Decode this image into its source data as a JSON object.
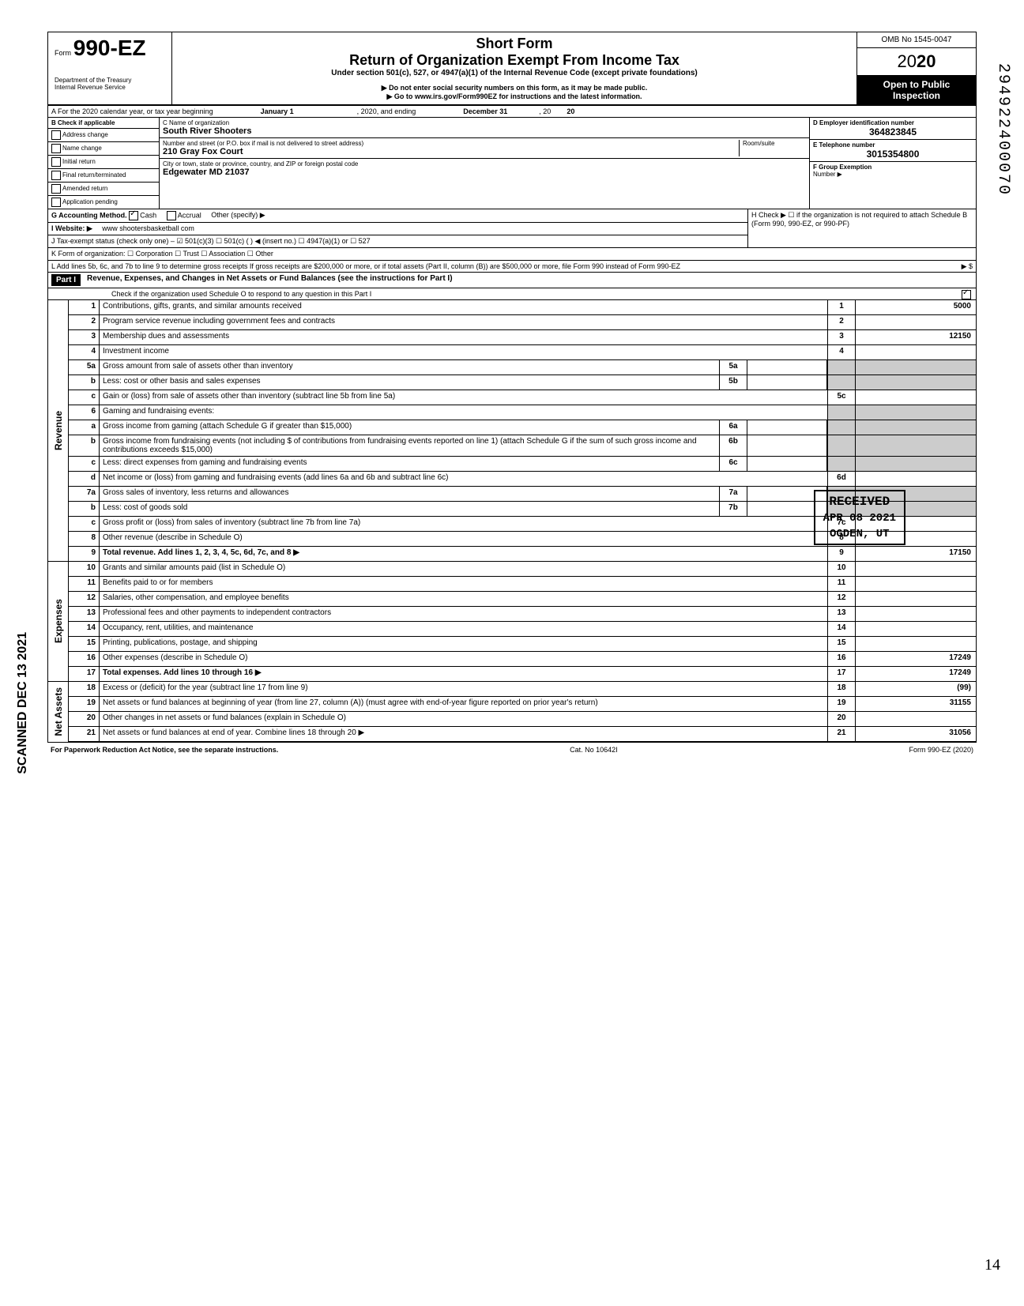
{
  "header": {
    "form_prefix": "Form",
    "form_number": "990-EZ",
    "short_form": "Short Form",
    "main_title": "Return of Organization Exempt From Income Tax",
    "subtitle": "Under section 501(c), 527, or 4947(a)(1) of the Internal Revenue Code (except private foundations)",
    "warning": "▶ Do not enter social security numbers on this form, as it may be made public.",
    "goto": "▶ Go to www.irs.gov/Form990EZ for instructions and the latest information.",
    "dept": "Department of the Treasury",
    "irs": "Internal Revenue Service",
    "omb": "OMB No 1545-0047",
    "year_prefix": "20",
    "year_bold": "20",
    "open_public": "Open to Public",
    "inspection": "Inspection"
  },
  "row_a": {
    "text_start": "A For the 2020 calendar year, or tax year beginning",
    "start_date": "January 1",
    "mid": ", 2020, and ending",
    "end_date": "December 31",
    "end": ", 20",
    "end_year": "20"
  },
  "col_b": {
    "header": "B Check if applicable",
    "items": [
      "Address change",
      "Name change",
      "Initial return",
      "Final return/terminated",
      "Amended return",
      "Application pending"
    ]
  },
  "col_c": {
    "name_label": "C Name of organization",
    "name_value": "South River Shooters",
    "addr_label": "Number and street (or P.O. box if mail is not delivered to street address)",
    "room_label": "Room/suite",
    "addr_value": "210 Gray Fox Court",
    "city_label": "City or town, state or province, country, and ZIP or foreign postal code",
    "city_value": "Edgewater MD 21037"
  },
  "col_de": {
    "d_label": "D Employer identification number",
    "d_value": "364823845",
    "e_label": "E Telephone number",
    "e_value": "3015354800",
    "f_label": "F Group Exemption",
    "f_number": "Number ▶"
  },
  "row_g": {
    "label": "G Accounting Method.",
    "cash": "Cash",
    "accrual": "Accrual",
    "other": "Other (specify) ▶"
  },
  "row_h": {
    "text": "H Check ▶ ☐ if the organization is not required to attach Schedule B",
    "forms": "(Form 990, 990-EZ, or 990-PF)"
  },
  "row_i": {
    "label": "I Website: ▶",
    "value": "www shootersbasketball com"
  },
  "row_j": {
    "text": "J Tax-exempt status (check only one) – ☑ 501(c)(3)   ☐ 501(c) (       ) ◀ (insert no.) ☐ 4947(a)(1) or ☐ 527"
  },
  "row_k": {
    "text": "K Form of organization: ☐ Corporation   ☐ Trust   ☐ Association   ☐ Other"
  },
  "row_l": {
    "text": "L Add lines 5b, 6c, and 7b to line 9 to determine gross receipts  If gross receipts are $200,000 or more, or if total assets (Part II, column (B)) are $500,000 or more, file Form 990 instead of Form 990-EZ",
    "arrow": "▶ $"
  },
  "part1": {
    "label": "Part I",
    "title": "Revenue, Expenses, and Changes in Net Assets or Fund Balances (see the instructions for Part I)",
    "check": "Check if the organization used Schedule O to respond to any question in this Part I"
  },
  "sections": {
    "revenue": "Revenue",
    "expenses": "Expenses",
    "netassets": "Net Assets"
  },
  "lines": [
    {
      "num": "1",
      "desc": "Contributions, gifts, grants, and similar amounts received",
      "box": "1",
      "val": "5000"
    },
    {
      "num": "2",
      "desc": "Program service revenue including government fees and contracts",
      "box": "2",
      "val": ""
    },
    {
      "num": "3",
      "desc": "Membership dues and assessments",
      "box": "3",
      "val": "12150"
    },
    {
      "num": "4",
      "desc": "Investment income",
      "box": "4",
      "val": ""
    },
    {
      "num": "5a",
      "desc": "Gross amount from sale of assets other than inventory",
      "sub": "5a"
    },
    {
      "num": "b",
      "desc": "Less: cost or other basis and sales expenses",
      "sub": "5b"
    },
    {
      "num": "c",
      "desc": "Gain or (loss) from sale of assets other than inventory (subtract line 5b from line 5a)",
      "box": "5c",
      "val": ""
    },
    {
      "num": "6",
      "desc": "Gaming and fundraising events:"
    },
    {
      "num": "a",
      "desc": "Gross income from gaming (attach Schedule G if greater than $15,000)",
      "sub": "6a"
    },
    {
      "num": "b",
      "desc": "Gross income from fundraising events (not including $             of contributions from fundraising events reported on line 1) (attach Schedule G if the sum of such gross income and contributions exceeds $15,000)",
      "sub": "6b"
    },
    {
      "num": "c",
      "desc": "Less: direct expenses from gaming and fundraising events",
      "sub": "6c"
    },
    {
      "num": "d",
      "desc": "Net income or (loss) from gaming and fundraising events (add lines 6a and 6b and subtract line 6c)",
      "box": "6d",
      "val": ""
    },
    {
      "num": "7a",
      "desc": "Gross sales of inventory, less returns and allowances",
      "sub": "7a"
    },
    {
      "num": "b",
      "desc": "Less: cost of goods sold",
      "sub": "7b"
    },
    {
      "num": "c",
      "desc": "Gross profit or (loss) from sales of inventory (subtract line 7b from line 7a)",
      "box": "7c",
      "val": ""
    },
    {
      "num": "8",
      "desc": "Other revenue (describe in Schedule O)",
      "box": "8",
      "val": ""
    },
    {
      "num": "9",
      "desc": "Total revenue. Add lines 1, 2, 3, 4, 5c, 6d, 7c, and 8  ▶",
      "box": "9",
      "val": "17150",
      "bold": true
    }
  ],
  "expense_lines": [
    {
      "num": "10",
      "desc": "Grants and similar amounts paid (list in Schedule O)",
      "box": "10",
      "val": ""
    },
    {
      "num": "11",
      "desc": "Benefits paid to or for members",
      "box": "11",
      "val": ""
    },
    {
      "num": "12",
      "desc": "Salaries, other compensation, and employee benefits",
      "box": "12",
      "val": ""
    },
    {
      "num": "13",
      "desc": "Professional fees and other payments to independent contractors",
      "box": "13",
      "val": ""
    },
    {
      "num": "14",
      "desc": "Occupancy, rent, utilities, and maintenance",
      "box": "14",
      "val": ""
    },
    {
      "num": "15",
      "desc": "Printing, publications, postage, and shipping",
      "box": "15",
      "val": ""
    },
    {
      "num": "16",
      "desc": "Other expenses (describe in Schedule O)",
      "box": "16",
      "val": "17249"
    },
    {
      "num": "17",
      "desc": "Total expenses. Add lines 10 through 16  ▶",
      "box": "17",
      "val": "17249",
      "bold": true
    }
  ],
  "netasset_lines": [
    {
      "num": "18",
      "desc": "Excess or (deficit) for the year (subtract line 17 from line 9)",
      "box": "18",
      "val": "(99)"
    },
    {
      "num": "19",
      "desc": "Net assets or fund balances at beginning of year (from line 27, column (A)) (must agree with end-of-year figure reported on prior year's return)",
      "box": "19",
      "val": "31155"
    },
    {
      "num": "20",
      "desc": "Other changes in net assets or fund balances (explain in Schedule O)",
      "box": "20",
      "val": ""
    },
    {
      "num": "21",
      "desc": "Net assets or fund balances at end of year. Combine lines 18 through 20  ▶",
      "box": "21",
      "val": "31056"
    }
  ],
  "footer": {
    "left": "For Paperwork Reduction Act Notice, see the separate instructions.",
    "mid": "Cat. No 10642I",
    "right": "Form 990-EZ (2020)"
  },
  "stamps": {
    "received": "RECEIVED",
    "received_date": "APR 08 2021",
    "received_loc": "OGDEN, UT",
    "scanned": "SCANNED DEC 13 2021",
    "dln": "294922400070",
    "page": "14"
  }
}
